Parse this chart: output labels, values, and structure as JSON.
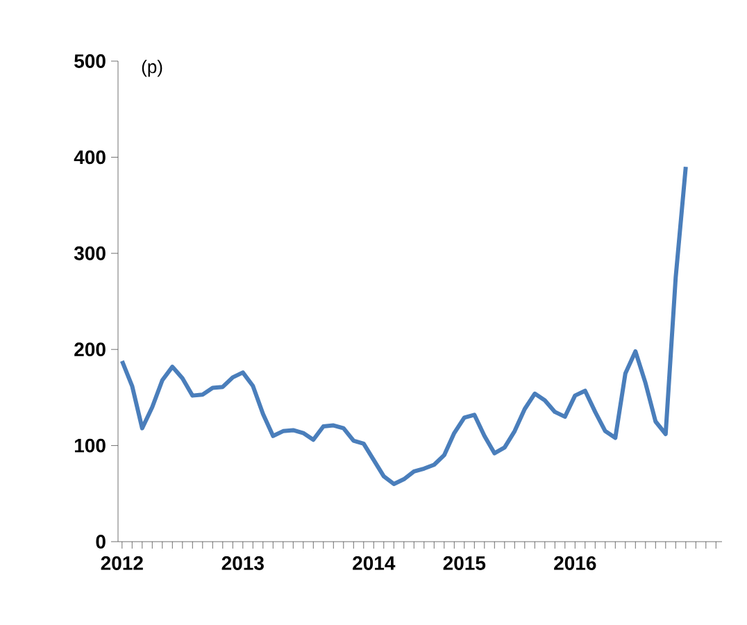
{
  "chart_data": {
    "type": "line",
    "ylabel": "(p)",
    "categories": [
      "2012",
      null,
      null,
      null,
      null,
      null,
      null,
      null,
      null,
      null,
      null,
      null,
      "2013",
      null,
      null,
      null,
      null,
      null,
      null,
      null,
      null,
      null,
      null,
      null,
      null,
      "2014",
      null,
      null,
      null,
      null,
      null,
      null,
      null,
      null,
      "2015",
      null,
      null,
      null,
      null,
      null,
      null,
      null,
      null,
      null,
      null,
      "2016",
      null,
      null,
      null,
      null,
      null,
      null,
      null,
      null,
      null,
      null,
      null,
      null,
      null,
      null
    ],
    "series": [
      {
        "color": "#4a7ebb",
        "values": [
          188,
          162,
          118,
          140,
          168,
          182,
          170,
          152,
          153,
          160,
          161,
          171,
          176,
          162,
          133,
          110,
          115,
          116,
          113,
          106,
          120,
          121,
          118,
          105,
          102,
          85,
          68,
          60,
          65,
          73,
          76,
          80,
          90,
          113,
          129,
          132,
          110,
          92,
          98,
          115,
          138,
          154,
          147,
          135,
          130,
          152,
          157,
          135,
          115,
          108,
          175,
          198,
          165,
          125,
          112,
          275,
          390,
          null,
          null,
          null
        ]
      }
    ],
    "ylim": [
      0,
      500
    ],
    "yticks": [
      0,
      100,
      200,
      300,
      400,
      500
    ],
    "grid": false,
    "legend": false,
    "marker": "none",
    "line_style": "solid"
  }
}
